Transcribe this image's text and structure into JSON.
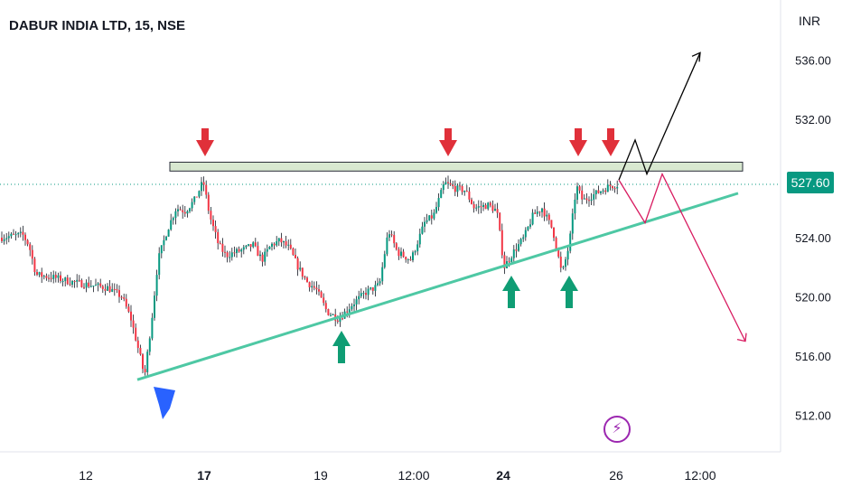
{
  "header": {
    "title": "DABUR INDIA LTD, 15, NSE"
  },
  "price_tag": {
    "value": "527.60"
  },
  "icons": {
    "lightning": "lightning-icon"
  },
  "colors": {
    "up": "#089981",
    "down": "#f23645",
    "support": "#4ec8a4",
    "resistance_fill": "#d8e8d0",
    "bear_path": "#d81b60",
    "bull_path": "#000000",
    "blue_marker": "#2962ff",
    "red_arrow": "#e0303a",
    "green_arrow": "#0f9d74"
  },
  "chart_data": {
    "type": "candlestick",
    "title": "DABUR INDIA LTD, 15, NSE",
    "currency": "INR",
    "ylim": [
      510,
      539
    ],
    "ytick_labels": [
      "512.00",
      "516.00",
      "520.00",
      "524.00",
      "528.00",
      "532.00",
      "536.00"
    ],
    "yticks": [
      512,
      516,
      520,
      524,
      528,
      532,
      536
    ],
    "xtick_labels": [
      "12",
      "17",
      "19",
      "12:00",
      "24",
      "26",
      "12:00"
    ],
    "xtick_bold": [
      false,
      true,
      false,
      false,
      true,
      false,
      false
    ],
    "grid": false,
    "last_price": 527.6,
    "close_path": [
      [
        0,
        524.0
      ],
      [
        25,
        524.2
      ],
      [
        32,
        523.5
      ],
      [
        40,
        521.5
      ],
      [
        60,
        521.3
      ],
      [
        80,
        521.0
      ],
      [
        100,
        520.8
      ],
      [
        120,
        520.6
      ],
      [
        135,
        520.0
      ],
      [
        145,
        518.5
      ],
      [
        155,
        516.0
      ],
      [
        160,
        514.6
      ],
      [
        168,
        518.5
      ],
      [
        175,
        522.5
      ],
      [
        185,
        524.5
      ],
      [
        195,
        526.0
      ],
      [
        205,
        525.8
      ],
      [
        215,
        526.5
      ],
      [
        225,
        527.8
      ],
      [
        232,
        525.5
      ],
      [
        242,
        523.5
      ],
      [
        250,
        522.8
      ],
      [
        260,
        523.0
      ],
      [
        270,
        523.2
      ],
      [
        280,
        523.5
      ],
      [
        290,
        522.5
      ],
      [
        300,
        523.5
      ],
      [
        310,
        523.8
      ],
      [
        320,
        523.3
      ],
      [
        330,
        522.0
      ],
      [
        340,
        521.0
      ],
      [
        350,
        520.5
      ],
      [
        362,
        519.0
      ],
      [
        375,
        518.5
      ],
      [
        390,
        519.5
      ],
      [
        405,
        520.3
      ],
      [
        420,
        520.8
      ],
      [
        430,
        524.5
      ],
      [
        440,
        523.0
      ],
      [
        455,
        522.5
      ],
      [
        470,
        525.0
      ],
      [
        480,
        525.5
      ],
      [
        492,
        527.7
      ],
      [
        505,
        527.3
      ],
      [
        515,
        527.2
      ],
      [
        525,
        526.0
      ],
      [
        540,
        526.2
      ],
      [
        550,
        525.8
      ],
      [
        558,
        522.0
      ],
      [
        568,
        523.0
      ],
      [
        580,
        524.0
      ],
      [
        590,
        525.5
      ],
      [
        600,
        526.0
      ],
      [
        612,
        524.5
      ],
      [
        622,
        521.5
      ],
      [
        630,
        523.5
      ],
      [
        638,
        527.5
      ],
      [
        645,
        526.5
      ],
      [
        660,
        527.0
      ],
      [
        675,
        527.5
      ],
      [
        685,
        527.6
      ]
    ],
    "support_line": {
      "from": [
        152,
        514.4
      ],
      "to": [
        817,
        527.0
      ]
    },
    "resistance_zone": {
      "x_from": 188,
      "x_to": 822,
      "y_low": 528.5,
      "y_high": 529.1
    },
    "bull_projection": [
      [
        685,
        527.9
      ],
      [
        703,
        530.6
      ],
      [
        716,
        528.3
      ],
      [
        775,
        536.5
      ]
    ],
    "bear_projection": [
      [
        685,
        527.9
      ],
      [
        714,
        525.0
      ],
      [
        733,
        528.3
      ],
      [
        825,
        517.0
      ]
    ],
    "markers": {
      "down_arrows_x": [
        227,
        496,
        640,
        676
      ],
      "up_arrows_x": [
        378,
        566,
        630
      ],
      "blue_marker_x": 182
    }
  }
}
